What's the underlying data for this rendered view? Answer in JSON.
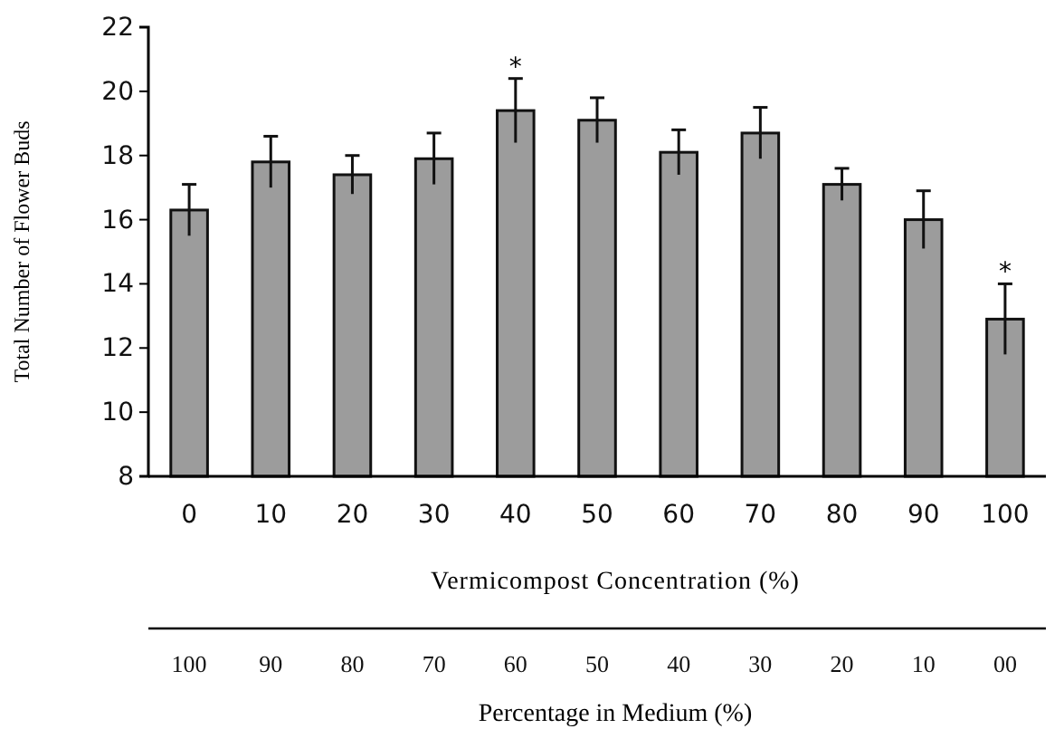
{
  "chart_data": {
    "type": "bar",
    "categories": [
      "0",
      "10",
      "20",
      "30",
      "40",
      "50",
      "60",
      "70",
      "80",
      "90",
      "100"
    ],
    "values": [
      16.3,
      17.8,
      17.4,
      17.9,
      19.4,
      19.1,
      18.1,
      18.7,
      17.1,
      16.0,
      12.9
    ],
    "errors": [
      0.8,
      0.8,
      0.6,
      0.8,
      1.0,
      0.7,
      0.7,
      0.8,
      0.5,
      0.9,
      1.1
    ],
    "color": "#9c9c9c",
    "ylim": [
      8,
      22
    ],
    "yticks": [
      8,
      10,
      12,
      14,
      16,
      18,
      20,
      22
    ],
    "xlabel": "Vermicompost Concentration (%)",
    "ylabel": "Total Number of Flower Buds",
    "annotations": [
      {
        "text": "*",
        "x": "40",
        "y": 20.4
      },
      {
        "text": "*",
        "x": "100",
        "y": 14.0
      }
    ],
    "x2label": "Percentage in Medium (%)",
    "x2lim": [
      105,
      -5
    ],
    "x2ticks": [
      100,
      90,
      80,
      70,
      60,
      50,
      40,
      30,
      20,
      10,
      {
        "value": 0,
        "label": "00"
      }
    ],
    "grid": false
  }
}
